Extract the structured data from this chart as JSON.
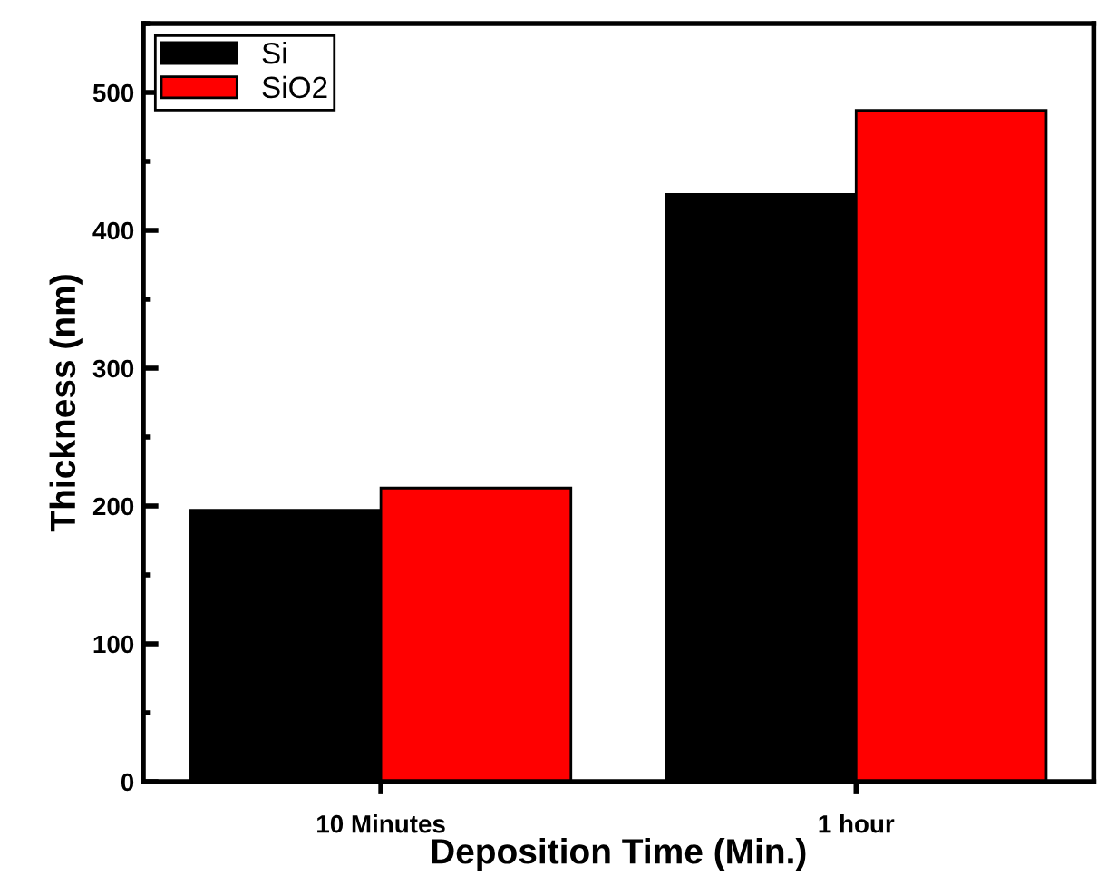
{
  "chart_data": {
    "type": "bar",
    "xlabel": "Deposition Time (Min.)",
    "ylabel": "Thickness (nm)",
    "categories": [
      "10 Minutes",
      "1 hour"
    ],
    "series": [
      {
        "name": "Si",
        "color": "#000000",
        "values": [
          197,
          426
        ]
      },
      {
        "name": "SiO2",
        "color": "#ff0000",
        "values": [
          213,
          487
        ]
      }
    ],
    "ylim": [
      0,
      550
    ],
    "yticks": [
      0,
      100,
      200,
      300,
      400,
      500
    ],
    "grid": false,
    "legend": "top left"
  }
}
